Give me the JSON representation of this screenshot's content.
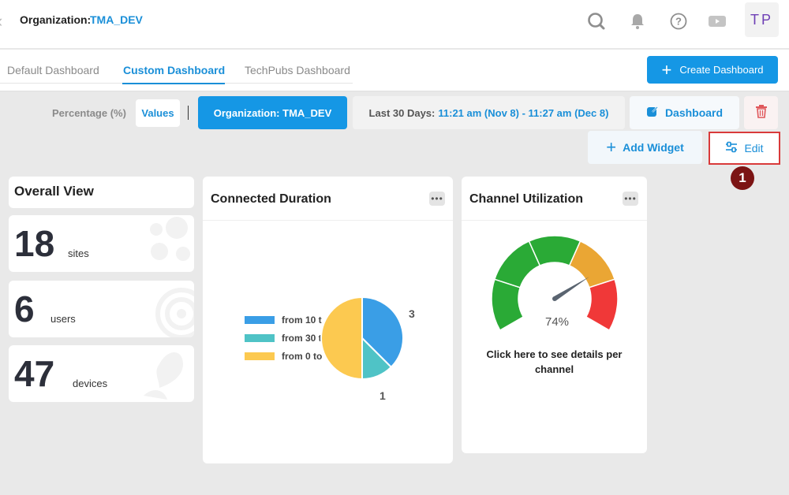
{
  "header": {
    "org_label": "Organization:",
    "org_value": "TMA_DEV",
    "avatar_initials": "TP",
    "icons": [
      "search-icon",
      "bell-icon",
      "help-icon",
      "video-icon"
    ]
  },
  "tabs": [
    {
      "label": "Default Dashboard",
      "active": false
    },
    {
      "label": "Custom Dashboard",
      "active": true
    },
    {
      "label": "TechPubs Dashboard",
      "active": false
    }
  ],
  "create_dashboard_label": "Create Dashboard",
  "toolbar": {
    "percentage_label": "Percentage (%)",
    "values_label": "Values",
    "org_filter_label": "Organization: TMA_DEV",
    "date_range_prefix": "Last 30 Days:",
    "date_range_value": "11:21 am (Nov 8) - 11:27 am (Dec 8)",
    "dashboard_label": "Dashboard",
    "add_widget_label": "Add Widget",
    "edit_label": "Edit",
    "step_badge": "1"
  },
  "overview": {
    "title": "Overall View",
    "stats": [
      {
        "value": "18",
        "unit": "sites"
      },
      {
        "value": "6",
        "unit": "users"
      },
      {
        "value": "47",
        "unit": "devices"
      }
    ]
  },
  "connected_duration": {
    "title": "Connected Duration",
    "chart_data": {
      "type": "pie",
      "slices": [
        {
          "name": "from 10 t",
          "value": 3,
          "color": "#3a9ee6"
        },
        {
          "name": "from 30 t",
          "value": 1,
          "color": "#4fc3c6"
        },
        {
          "name": "from 0 to",
          "value": 4,
          "color": "#fcc950"
        }
      ],
      "slice_labels": [
        "3",
        "1"
      ]
    }
  },
  "channel_utilization": {
    "title": "Channel Utilization",
    "gauge_value": 74,
    "gauge_label": "74%",
    "caption": "Click here to see details per channel",
    "colors": {
      "green": "#2aaa36",
      "orange": "#eaa634",
      "red": "#f03838"
    }
  }
}
